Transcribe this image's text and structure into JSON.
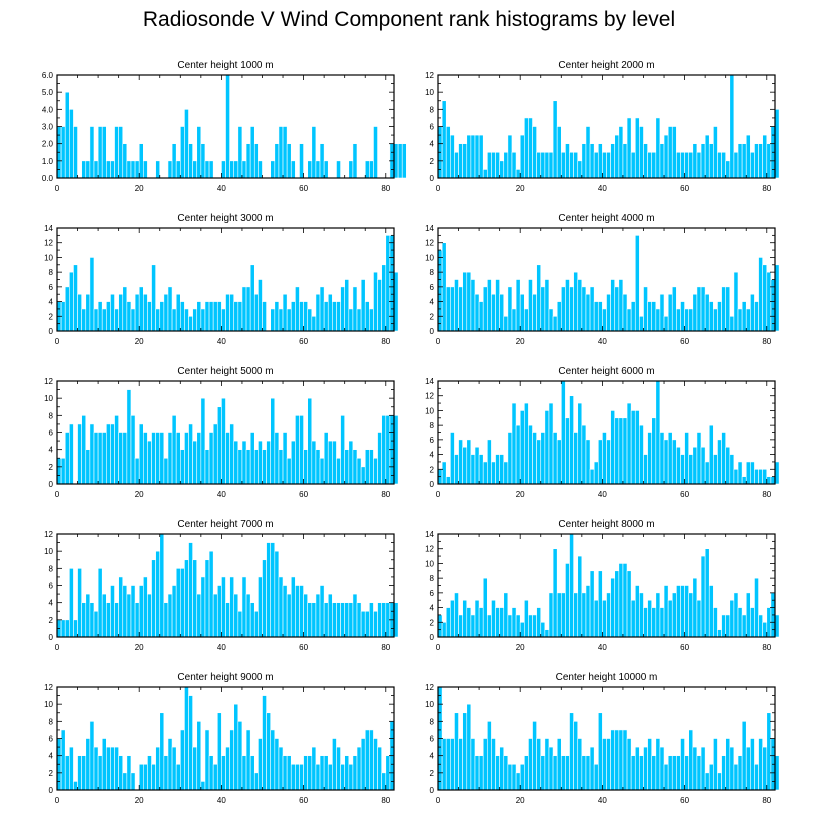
{
  "title": "Radiosonde V Wind Component rank histograms by level",
  "colors": {
    "bar": "#00c5ff",
    "axis": "#000000",
    "background": "#ffffff"
  },
  "chart_data": [
    {
      "type": "bar",
      "title": "Center height 1000 m",
      "xlim": [
        0,
        82
      ],
      "ylim": [
        0,
        6
      ],
      "x_ticks": [
        0,
        20,
        40,
        60,
        80
      ],
      "y_ticks": [
        0,
        1,
        2,
        3,
        4,
        5,
        6
      ],
      "y_tick_labels": [
        "0.0",
        "1.0",
        "2.0",
        "3.0",
        "4.0",
        "5.0",
        "6.0"
      ],
      "values": [
        3,
        3,
        5,
        4,
        3,
        0,
        1,
        1,
        3,
        1,
        3,
        3,
        1,
        1,
        3,
        3,
        2,
        1,
        1,
        1,
        2,
        1,
        0,
        0,
        1,
        0,
        0,
        1,
        2,
        1,
        3,
        4,
        2,
        1,
        3,
        2,
        1,
        1,
        0,
        0,
        1,
        6,
        1,
        1,
        3,
        1,
        2,
        3,
        2,
        1,
        0,
        0,
        1,
        2,
        3,
        3,
        2,
        1,
        0,
        2,
        0,
        1,
        3,
        1,
        2,
        1,
        0,
        0,
        1,
        0,
        0,
        1,
        2,
        0,
        0,
        1,
        1,
        3,
        0,
        0,
        0,
        2,
        2,
        2,
        2
      ]
    },
    {
      "type": "bar",
      "title": "Center height 2000 m",
      "xlim": [
        0,
        82
      ],
      "ylim": [
        0,
        12
      ],
      "x_ticks": [
        0,
        20,
        40,
        60,
        80
      ],
      "y_ticks": [
        0,
        2,
        4,
        6,
        8,
        10,
        12
      ],
      "y_tick_labels": [
        "0",
        "2",
        "4",
        "6",
        "8",
        "10",
        "12"
      ],
      "values": [
        6,
        9,
        6,
        5,
        3,
        4,
        4,
        5,
        5,
        5,
        5,
        1,
        3,
        3,
        3,
        2,
        3,
        5,
        3,
        1,
        5,
        7,
        7,
        6,
        3,
        3,
        3,
        3,
        9,
        6,
        3,
        4,
        3,
        3,
        2,
        4,
        6,
        4,
        3,
        4,
        3,
        3,
        4,
        5,
        6,
        4,
        7,
        3,
        7,
        6,
        4,
        3,
        3,
        7,
        4,
        5,
        6,
        6,
        3,
        3,
        3,
        3,
        4,
        3,
        4,
        5,
        4,
        6,
        3,
        3,
        2,
        12,
        3,
        4,
        4,
        5,
        3,
        4,
        4,
        5,
        4,
        6,
        8
      ]
    },
    {
      "type": "bar",
      "title": "Center height 3000 m",
      "xlim": [
        0,
        82
      ],
      "ylim": [
        0,
        14
      ],
      "x_ticks": [
        0,
        20,
        40,
        60,
        80
      ],
      "y_ticks": [
        0,
        2,
        4,
        6,
        8,
        10,
        12,
        14
      ],
      "y_tick_labels": [
        "0",
        "2",
        "4",
        "6",
        "8",
        "10",
        "12",
        "14"
      ],
      "values": [
        4,
        4,
        6,
        8,
        9,
        5,
        3,
        5,
        10,
        3,
        4,
        3,
        4,
        5,
        3,
        5,
        6,
        4,
        3,
        5,
        6,
        5,
        4,
        9,
        3,
        4,
        5,
        6,
        3,
        5,
        4,
        3,
        2,
        3,
        4,
        3,
        4,
        4,
        4,
        4,
        3,
        5,
        5,
        4,
        4,
        6,
        6,
        9,
        5,
        7,
        4,
        0,
        3,
        4,
        3,
        5,
        3,
        4,
        6,
        4,
        4,
        3,
        2,
        5,
        6,
        4,
        5,
        4,
        4,
        6,
        7,
        3,
        6,
        3,
        7,
        4,
        3,
        8,
        7,
        9,
        13,
        13,
        8
      ]
    },
    {
      "type": "bar",
      "title": "Center height 4000 m",
      "xlim": [
        0,
        82
      ],
      "ylim": [
        0,
        14
      ],
      "x_ticks": [
        0,
        20,
        40,
        60,
        80
      ],
      "y_ticks": [
        0,
        2,
        4,
        6,
        8,
        10,
        12,
        14
      ],
      "y_tick_labels": [
        "0",
        "2",
        "4",
        "6",
        "8",
        "10",
        "12",
        "14"
      ],
      "values": [
        11,
        12,
        6,
        6,
        7,
        6,
        8,
        8,
        7,
        5,
        4,
        6,
        7,
        5,
        7,
        5,
        2,
        6,
        3,
        7,
        5,
        3,
        7,
        5,
        9,
        6,
        7,
        3,
        2,
        4,
        6,
        7,
        6,
        8,
        7,
        6,
        5,
        6,
        4,
        4,
        3,
        5,
        7,
        6,
        7,
        5,
        3,
        4,
        13,
        2,
        6,
        4,
        4,
        3,
        5,
        2,
        5,
        6,
        3,
        4,
        3,
        3,
        5,
        6,
        6,
        5,
        4,
        3,
        4,
        6,
        6,
        2,
        8,
        3,
        4,
        3,
        5,
        4,
        10,
        9,
        8,
        7,
        9
      ]
    },
    {
      "type": "bar",
      "title": "Center height 5000 m",
      "xlim": [
        0,
        82
      ],
      "ylim": [
        0,
        12
      ],
      "x_ticks": [
        0,
        20,
        40,
        60,
        80
      ],
      "y_ticks": [
        0,
        2,
        4,
        6,
        8,
        10,
        12
      ],
      "y_tick_labels": [
        "0",
        "2",
        "4",
        "6",
        "8",
        "10",
        "12"
      ],
      "values": [
        3,
        3,
        6,
        7,
        0,
        7,
        8,
        4,
        7,
        6,
        6,
        6,
        7,
        7,
        8,
        6,
        6,
        11,
        8,
        3,
        7,
        6,
        5,
        6,
        6,
        6,
        3,
        6,
        8,
        6,
        4,
        6,
        7,
        5,
        6,
        10,
        4,
        6,
        7,
        9,
        10,
        6,
        7,
        5,
        4,
        5,
        4,
        6,
        4,
        5,
        4,
        5,
        10,
        6,
        4,
        6,
        3,
        5,
        8,
        8,
        4,
        10,
        5,
        4,
        3,
        6,
        5,
        5,
        3,
        8,
        4,
        5,
        4,
        3,
        2,
        4,
        4,
        3,
        6,
        8,
        8,
        8,
        8
      ]
    },
    {
      "type": "bar",
      "title": "Center height 6000 m",
      "xlim": [
        0,
        82
      ],
      "ylim": [
        0,
        14
      ],
      "x_ticks": [
        0,
        20,
        40,
        60,
        80
      ],
      "y_ticks": [
        0,
        2,
        4,
        6,
        8,
        10,
        12,
        14
      ],
      "y_tick_labels": [
        "0",
        "2",
        "4",
        "6",
        "8",
        "10",
        "12",
        "14"
      ],
      "values": [
        2,
        3,
        1,
        7,
        4,
        6,
        5,
        6,
        4,
        5,
        4,
        3,
        6,
        3,
        4,
        4,
        3,
        7,
        11,
        8,
        10,
        11,
        8,
        7,
        6,
        7,
        10,
        11,
        7,
        6,
        14,
        9,
        12,
        7,
        11,
        8,
        6,
        2,
        3,
        6,
        7,
        6,
        10,
        9,
        9,
        9,
        11,
        10,
        10,
        8,
        4,
        7,
        9,
        14,
        7,
        6,
        7,
        6,
        5,
        4,
        7,
        4,
        5,
        7,
        5,
        3,
        8,
        4,
        6,
        7,
        5,
        4,
        2,
        3,
        1,
        3,
        3,
        2,
        2,
        2,
        1,
        1,
        3
      ]
    },
    {
      "type": "bar",
      "title": "Center height 7000 m",
      "xlim": [
        0,
        82
      ],
      "ylim": [
        0,
        12
      ],
      "x_ticks": [
        0,
        20,
        40,
        60,
        80
      ],
      "y_ticks": [
        0,
        2,
        4,
        6,
        8,
        10,
        12
      ],
      "y_tick_labels": [
        "0",
        "2",
        "4",
        "6",
        "8",
        "10",
        "12"
      ],
      "values": [
        2,
        2,
        2,
        8,
        2,
        8,
        4,
        5,
        4,
        3,
        8,
        5,
        4,
        6,
        4,
        7,
        6,
        5,
        6,
        4,
        6,
        7,
        5,
        9,
        10,
        12,
        4,
        5,
        6,
        8,
        8,
        9,
        11,
        9,
        5,
        7,
        9,
        10,
        5,
        6,
        7,
        4,
        7,
        5,
        3,
        7,
        5,
        4,
        3,
        7,
        9,
        11,
        11,
        10,
        7,
        6,
        5,
        7,
        6,
        6,
        5,
        4,
        4,
        5,
        6,
        4,
        5,
        4,
        4,
        4,
        4,
        4,
        5,
        4,
        3,
        3,
        4,
        3,
        4,
        4,
        4,
        4,
        4
      ]
    },
    {
      "type": "bar",
      "title": "Center height 8000 m",
      "xlim": [
        0,
        82
      ],
      "ylim": [
        0,
        14
      ],
      "x_ticks": [
        0,
        20,
        40,
        60,
        80
      ],
      "y_ticks": [
        0,
        2,
        4,
        6,
        8,
        10,
        12,
        14
      ],
      "y_tick_labels": [
        "0",
        "2",
        "4",
        "6",
        "8",
        "10",
        "12",
        "14"
      ],
      "values": [
        3,
        2,
        4,
        5,
        6,
        3,
        5,
        4,
        3,
        5,
        4,
        8,
        3,
        5,
        4,
        4,
        6,
        3,
        4,
        3,
        2,
        5,
        3,
        3,
        4,
        2,
        1,
        6,
        12,
        6,
        6,
        10,
        14,
        6,
        11,
        6,
        7,
        9,
        5,
        9,
        5,
        6,
        8,
        9,
        10,
        10,
        9,
        5,
        7,
        6,
        4,
        5,
        4,
        6,
        4,
        7,
        5,
        6,
        7,
        7,
        7,
        6,
        8,
        5,
        11,
        12,
        7,
        4,
        1,
        3,
        3,
        5,
        6,
        4,
        3,
        6,
        4,
        8,
        3,
        2,
        4,
        6,
        3
      ]
    },
    {
      "type": "bar",
      "title": "Center height 9000 m",
      "xlim": [
        0,
        82
      ],
      "ylim": [
        0,
        12
      ],
      "x_ticks": [
        0,
        20,
        40,
        60,
        80
      ],
      "y_ticks": [
        0,
        2,
        4,
        6,
        8,
        10,
        12
      ],
      "y_tick_labels": [
        "0",
        "2",
        "4",
        "6",
        "8",
        "10",
        "12"
      ],
      "values": [
        6,
        7,
        4,
        5,
        1,
        4,
        4,
        6,
        8,
        5,
        4,
        6,
        5,
        5,
        5,
        4,
        2,
        4,
        2,
        0,
        3,
        3,
        4,
        3,
        5,
        9,
        4,
        6,
        5,
        3,
        7,
        12,
        11,
        5,
        8,
        1,
        7,
        4,
        3,
        9,
        4,
        5,
        7,
        10,
        8,
        4,
        7,
        4,
        2,
        6,
        11,
        9,
        7,
        6,
        5,
        4,
        4,
        3,
        3,
        3,
        4,
        4,
        5,
        3,
        4,
        4,
        3,
        6,
        5,
        3,
        4,
        3,
        4,
        5,
        6,
        7,
        7,
        6,
        5,
        2,
        4,
        8
      ]
    },
    {
      "type": "bar",
      "title": "Center height 10000 m",
      "xlim": [
        0,
        82
      ],
      "ylim": [
        0,
        12
      ],
      "x_ticks": [
        0,
        20,
        40,
        60,
        80
      ],
      "y_ticks": [
        0,
        2,
        4,
        6,
        8,
        10,
        12
      ],
      "y_tick_labels": [
        "0",
        "2",
        "4",
        "6",
        "8",
        "10",
        "12"
      ],
      "values": [
        12,
        6,
        6,
        6,
        9,
        6,
        9,
        10,
        6,
        4,
        4,
        6,
        8,
        6,
        4,
        5,
        4,
        3,
        3,
        2,
        3,
        4,
        6,
        8,
        6,
        4,
        6,
        5,
        4,
        6,
        4,
        4,
        9,
        8,
        6,
        4,
        4,
        5,
        3,
        9,
        6,
        6,
        7,
        7,
        7,
        7,
        6,
        4,
        5,
        4,
        5,
        6,
        4,
        6,
        5,
        3,
        4,
        4,
        4,
        6,
        4,
        7,
        5,
        4,
        5,
        2,
        3,
        6,
        2,
        4,
        6,
        5,
        3,
        4,
        8,
        5,
        6,
        3,
        6,
        5,
        9,
        6,
        4
      ]
    }
  ]
}
